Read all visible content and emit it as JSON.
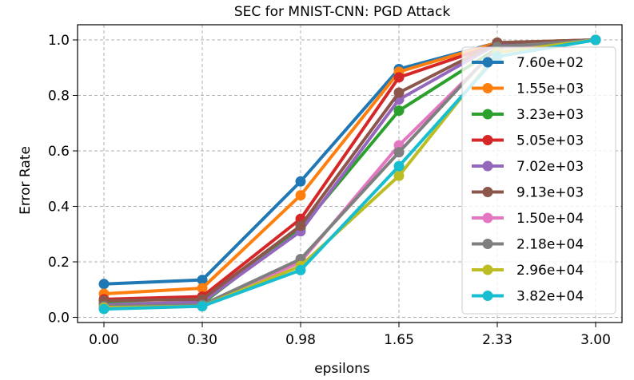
{
  "chart_data": {
    "type": "line",
    "title": "SEC for MNIST-CNN: PGD Attack",
    "xlabel": "epsilons",
    "ylabel": "Error Rate",
    "categories": [
      "0.00",
      "0.30",
      "0.98",
      "1.65",
      "2.33",
      "3.00"
    ],
    "ylim": [
      -0.01,
      1.04
    ],
    "yticks": [
      "0.0",
      "0.2",
      "0.4",
      "0.6",
      "0.8",
      "1.0"
    ],
    "grid": true,
    "legend_position": "right",
    "series": [
      {
        "name": "7.60e+02",
        "color": "#1f77b4",
        "values": [
          0.12,
          0.135,
          0.49,
          0.895,
          0.99,
          1.0
        ]
      },
      {
        "name": "1.55e+03",
        "color": "#ff7f0e",
        "values": [
          0.085,
          0.105,
          0.44,
          0.885,
          0.99,
          1.0
        ]
      },
      {
        "name": "3.23e+03",
        "color": "#2ca02c",
        "values": [
          0.05,
          0.05,
          0.32,
          0.745,
          0.97,
          1.0
        ]
      },
      {
        "name": "5.05e+03",
        "color": "#d62728",
        "values": [
          0.065,
          0.075,
          0.355,
          0.865,
          0.985,
          1.0
        ]
      },
      {
        "name": "7.02e+03",
        "color": "#9467bd",
        "values": [
          0.045,
          0.055,
          0.31,
          0.785,
          0.985,
          1.0
        ]
      },
      {
        "name": "9.13e+03",
        "color": "#8c564b",
        "values": [
          0.06,
          0.065,
          0.33,
          0.81,
          0.99,
          1.0
        ]
      },
      {
        "name": "1.50e+04",
        "color": "#e377c2",
        "values": [
          0.035,
          0.04,
          0.2,
          0.62,
          0.97,
          1.0
        ]
      },
      {
        "name": "2.18e+04",
        "color": "#7f7f7f",
        "values": [
          0.04,
          0.045,
          0.21,
          0.595,
          0.975,
          1.0
        ]
      },
      {
        "name": "2.96e+04",
        "color": "#bcbd22",
        "values": [
          0.035,
          0.04,
          0.185,
          0.51,
          0.955,
          1.0
        ]
      },
      {
        "name": "3.82e+04",
        "color": "#17becf",
        "values": [
          0.03,
          0.04,
          0.17,
          0.545,
          0.94,
          1.0
        ]
      }
    ]
  }
}
